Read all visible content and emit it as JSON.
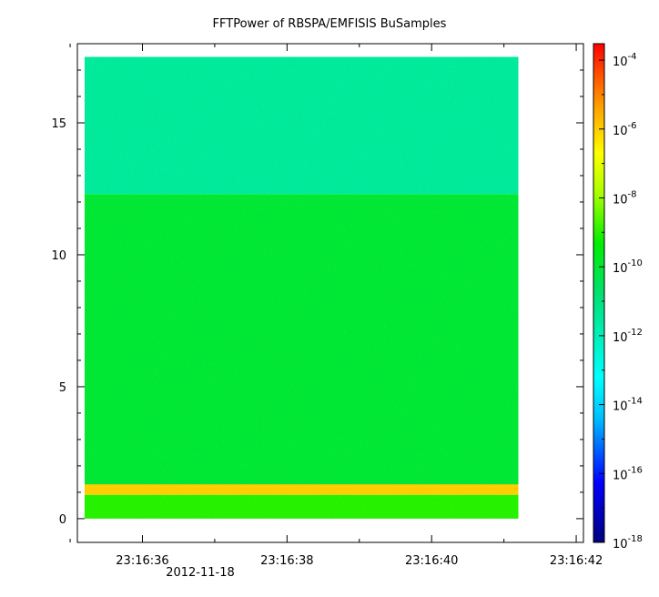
{
  "chart_data": {
    "type": "heatmap",
    "title": "FFTPower of RBSPA/EMFISIS  BuSamples",
    "xlabel": "",
    "ylabel": "",
    "x_axis": {
      "type": "time",
      "ticks": [
        "23:16:36",
        "23:16:38",
        "23:16:40",
        "23:16:42"
      ],
      "date_label": "2012-11-18",
      "range": [
        "23:16:35.1",
        "23:16:42.1"
      ]
    },
    "y_axis": {
      "ticks": [
        "0",
        "5",
        "10",
        "15"
      ],
      "range": [
        -0.9,
        18.0
      ]
    },
    "data_extent": {
      "x_start": "23:16:35.2",
      "x_end": "23:16:41.2",
      "y_start": 0,
      "y_end": 17.5
    },
    "colorbar": {
      "scale": "log",
      "colormap": "rainbow",
      "range": [
        "1e-18",
        "3e-4"
      ],
      "tick_bases": [
        "10",
        "10",
        "10",
        "10",
        "10",
        "10",
        "10",
        "10"
      ],
      "tick_exponents": [
        "-4",
        "-6",
        "-8",
        "-10",
        "-12",
        "-14",
        "-16",
        "-18"
      ]
    },
    "regions": [
      {
        "y_range": [
          12.3,
          17.5
        ],
        "approx_power": "3e-12"
      },
      {
        "y_range": [
          1.2,
          12.3
        ],
        "approx_power": "1e-10"
      },
      {
        "y_range": [
          0.9,
          1.3
        ],
        "approx_power": "1e-6"
      },
      {
        "y_range": [
          0.0,
          0.9
        ],
        "approx_power": "1e-9"
      }
    ],
    "grid": false,
    "legend": "colorbar-right"
  }
}
